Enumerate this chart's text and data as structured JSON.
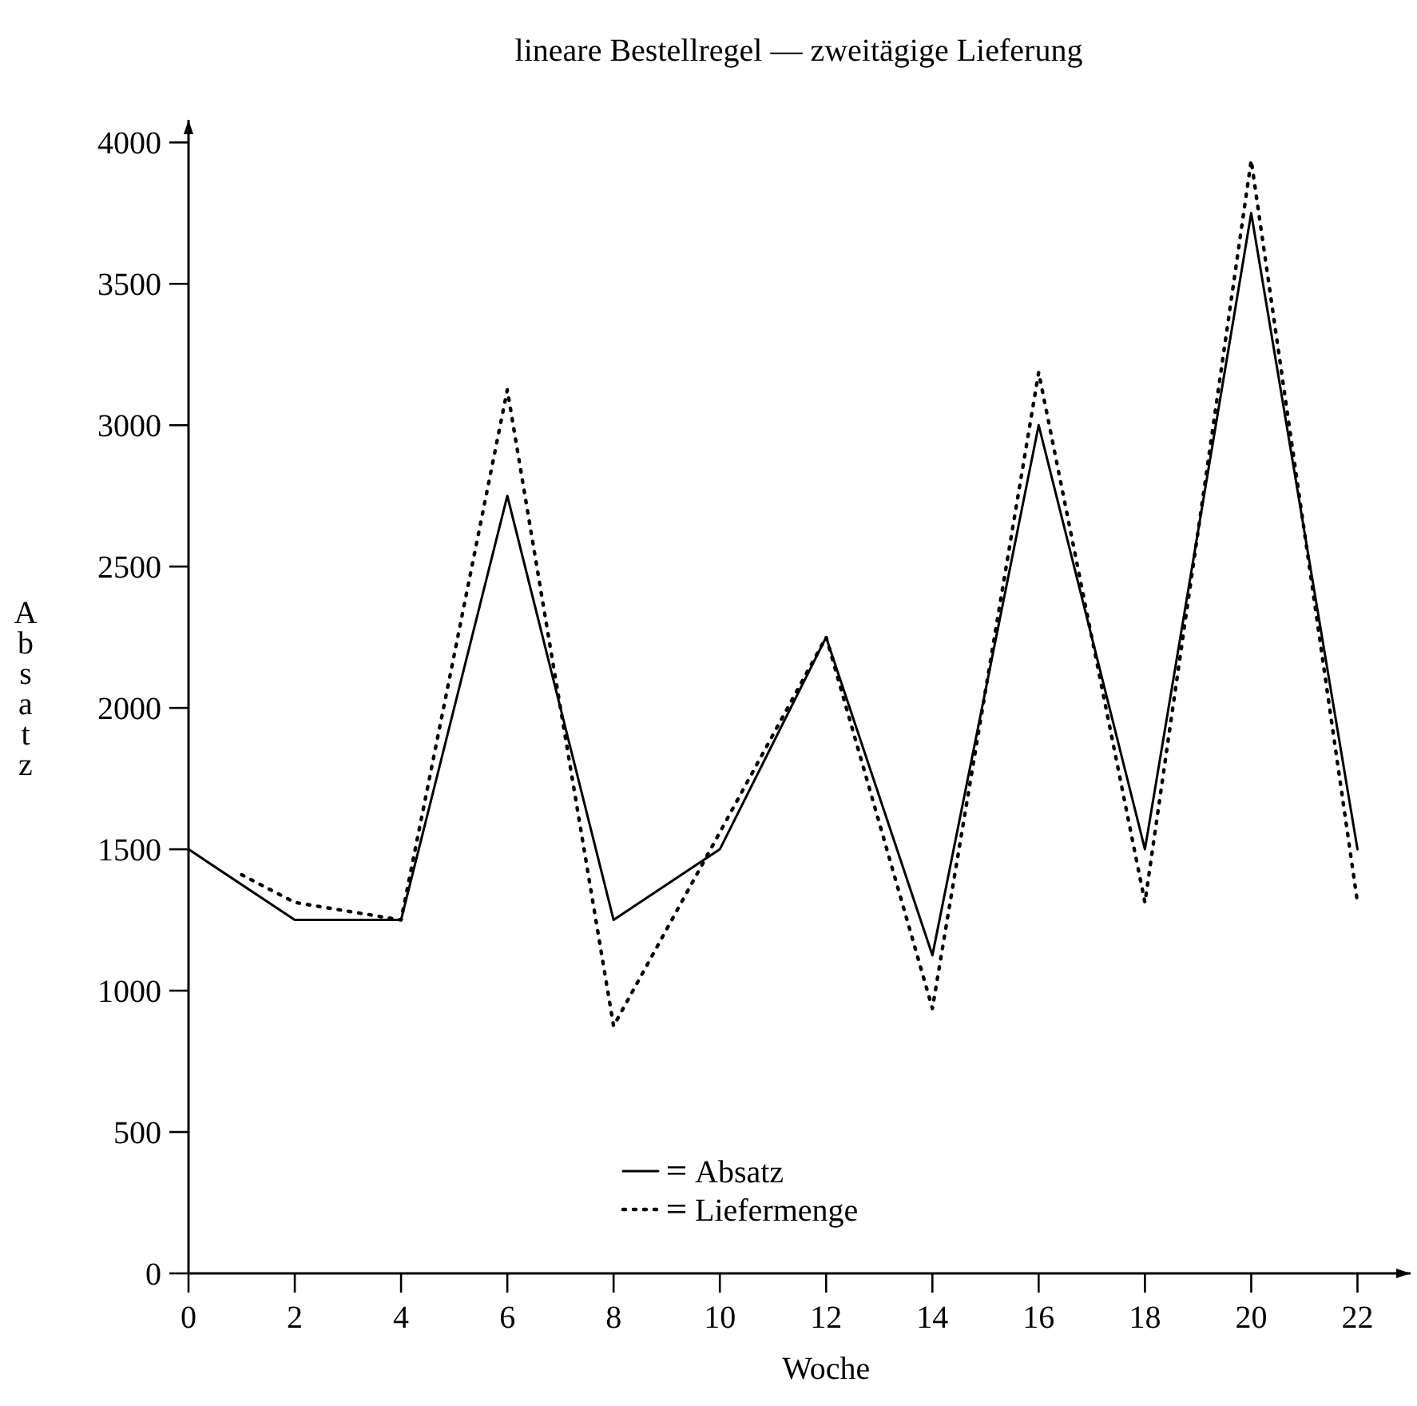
{
  "chart_data": {
    "type": "line",
    "title": "lineare Bestellregel — zweitägige Lieferung",
    "xlabel": "Woche",
    "ylabel": "Absatz",
    "xlim": [
      0,
      23
    ],
    "xticks": [
      0,
      2,
      4,
      6,
      8,
      10,
      12,
      14,
      16,
      18,
      20,
      22
    ],
    "ylim": [
      0,
      4080
    ],
    "yticks": [
      0,
      500,
      1000,
      1500,
      2000,
      2500,
      3000,
      3500,
      4000
    ],
    "grid": false,
    "legend": "bottom",
    "marker": "none",
    "series": [
      {
        "name": "Absatz",
        "color": "#000000",
        "line_style": "solid",
        "x": [
          0,
          2,
          4,
          6,
          8,
          10,
          12,
          14,
          16,
          18,
          20,
          22
        ],
        "values": [
          1500,
          1250,
          1250,
          2750,
          1250,
          1500,
          2250,
          1125,
          3000,
          1500,
          3750,
          1500
        ]
      },
      {
        "name": "Liefermenge",
        "color": "#000000",
        "line_style": "dotted",
        "x": [
          1,
          2,
          4,
          6,
          8,
          10,
          12,
          14,
          16,
          18,
          20,
          22
        ],
        "values": [
          1410,
          1312,
          1250,
          3125,
          875,
          1560,
          2250,
          937,
          3187,
          1312,
          3937,
          1312
        ]
      }
    ]
  }
}
